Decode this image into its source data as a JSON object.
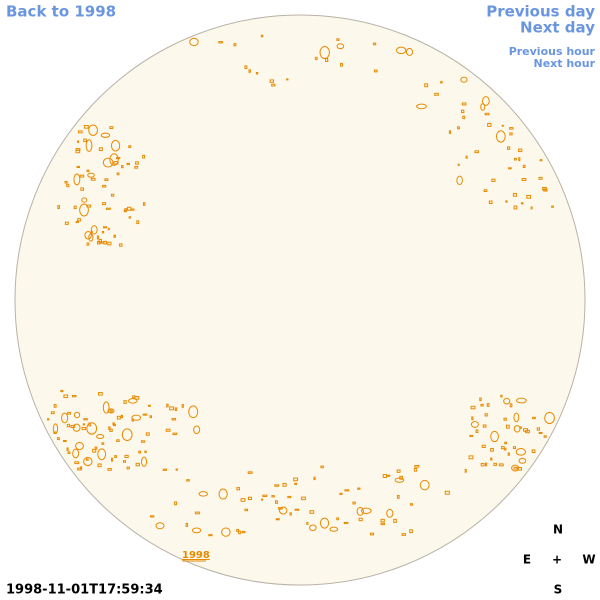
{
  "nav": {
    "back": "Back to 1998",
    "previous_day": "Previous day",
    "next_day": "Next day",
    "previous_hour": "Previous hour",
    "next_hour": "Next hour"
  },
  "image": {
    "year_label": "1998",
    "timestamp": "1998-11-01T17:59:34"
  },
  "compass": {
    "north": "N",
    "east": "E",
    "center": "+",
    "west": "W",
    "south": "S"
  }
}
